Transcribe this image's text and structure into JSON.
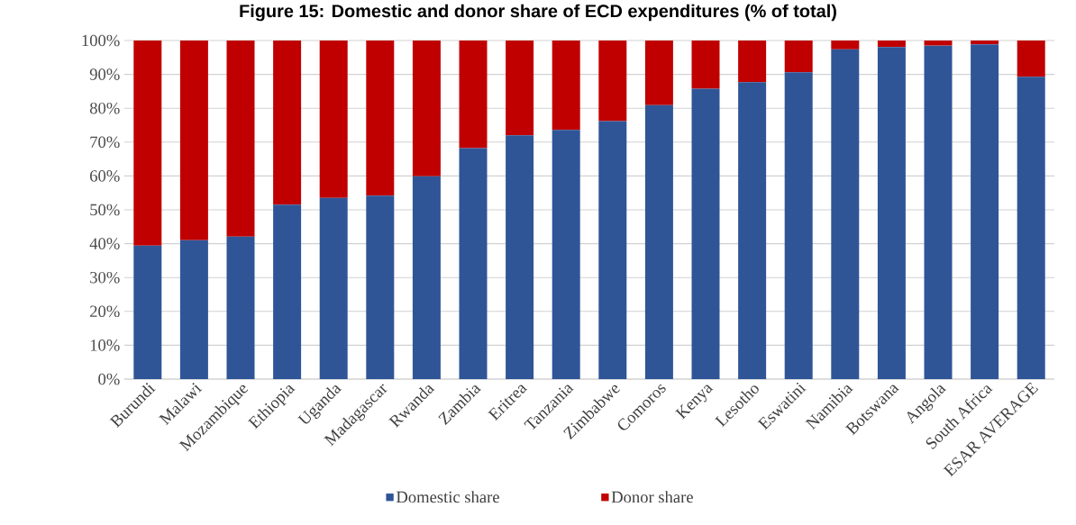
{
  "chart_data": {
    "type": "bar",
    "stacked": true,
    "title": "Figure 15: Domestic and donor share of ECD expenditures (% of total)",
    "categories": [
      "Burundi",
      "Malawi",
      "Mozambique",
      "Ethiopia",
      "Uganda",
      "Madagascar",
      "Rwanda",
      "Zambia",
      "Eritrea",
      "Tanzania",
      "Zimbabwe",
      "Comoros",
      "Kenya",
      "Lesotho",
      "Eswatini",
      "Namibia",
      "Botswana",
      "Angola",
      "South Africa",
      "ESAR AVERAGE"
    ],
    "series": [
      {
        "name": "Domestic share",
        "color": "#2f5597",
        "values": [
          39.4,
          41.0,
          42.1,
          51.5,
          53.5,
          54.2,
          59.9,
          68.2,
          72.0,
          73.6,
          76.2,
          80.9,
          85.8,
          87.7,
          90.6,
          97.4,
          98.1,
          98.5,
          98.9,
          89.3
        ]
      },
      {
        "name": "Donor share",
        "color": "#c00000",
        "values": [
          60.6,
          59.0,
          57.9,
          48.5,
          46.5,
          45.8,
          40.1,
          31.8,
          28.0,
          26.4,
          23.8,
          19.1,
          14.2,
          12.3,
          9.4,
          2.6,
          1.9,
          1.5,
          1.1,
          10.7
        ]
      }
    ],
    "ylim": [
      0,
      100
    ],
    "yticks": [
      {
        "value": 0,
        "label": "0%"
      },
      {
        "value": 10,
        "label": "10%"
      },
      {
        "value": 20,
        "label": "20%"
      },
      {
        "value": 30,
        "label": "30%"
      },
      {
        "value": 40,
        "label": "40%"
      },
      {
        "value": 50,
        "label": "50%"
      },
      {
        "value": 60,
        "label": "60%"
      },
      {
        "value": 70,
        "label": "70%"
      },
      {
        "value": 80,
        "label": "80%"
      },
      {
        "value": 90,
        "label": "90%"
      },
      {
        "value": 100,
        "label": "100%"
      }
    ],
    "grid": "y",
    "legend": "bottom"
  }
}
